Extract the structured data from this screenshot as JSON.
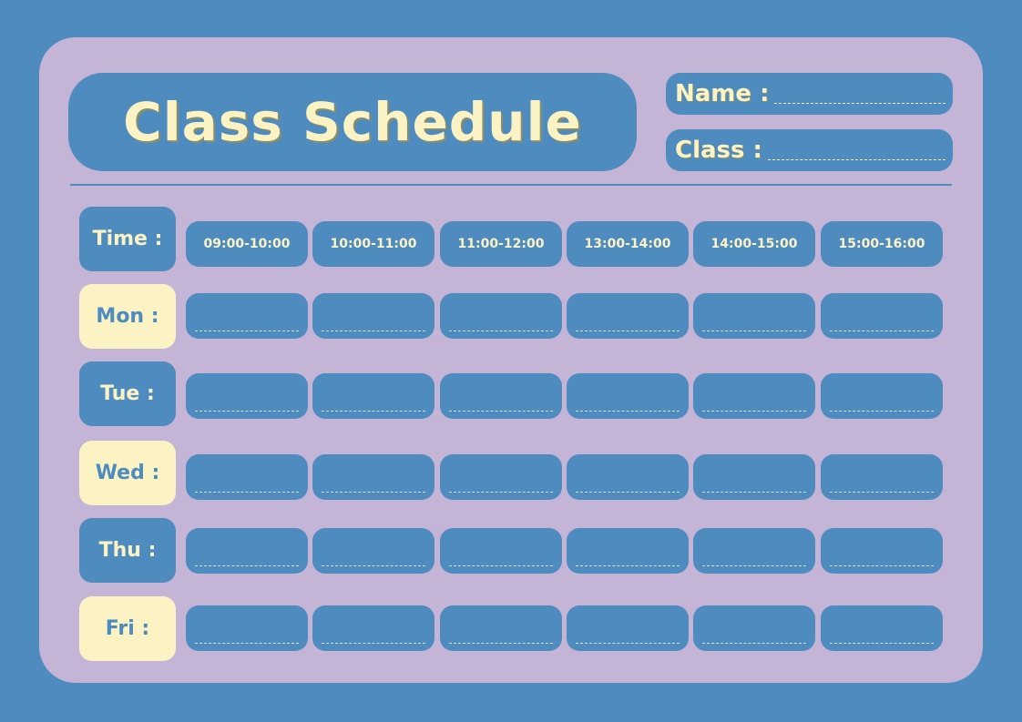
{
  "title": "Class Schedule",
  "fields": {
    "name_label": "Name :",
    "class_label": "Class :"
  },
  "time_label": "Time :",
  "time_slots": [
    "09:00-10:00",
    "10:00-11:00",
    "11:00-12:00",
    "13:00-14:00",
    "14:00-15:00",
    "15:00-16:00"
  ],
  "days": [
    "Mon :",
    "Tue :",
    "Wed :",
    "Thu :",
    "Fri :"
  ],
  "colors": {
    "background": "#4e8bbf",
    "card": "#c4b4d6",
    "cream": "#fcf3c4"
  }
}
